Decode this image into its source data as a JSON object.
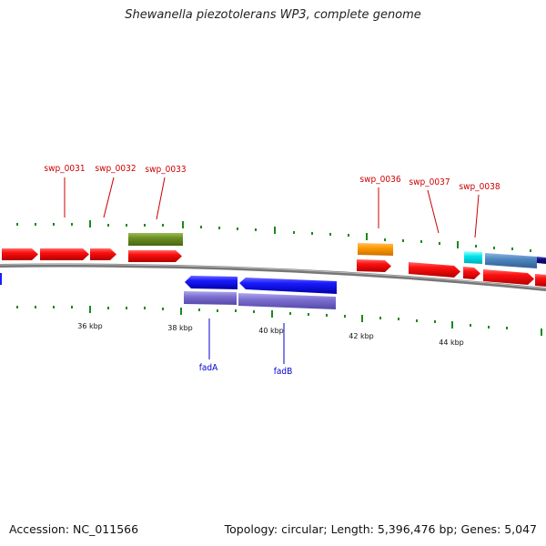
{
  "title": "Shewanella piezotolerans WP3, complete genome",
  "footer": {
    "accession": "Accession: NC_011566",
    "summary": "Topology: circular; Length: 5,396,476 bp; Genes: 5,047"
  },
  "colors": {
    "cds_red": "#ff1010",
    "cds_blue": "#1a1aff",
    "cds_purple": "#7b6fd0",
    "olive": "#6b8e23",
    "orange": "#ff9900",
    "cyan": "#00e5ee",
    "steelblue": "#4f86c0",
    "navy": "#0d0d80",
    "tick_green": "#1a8a1a",
    "backbone": "#777777",
    "label_red": "#cc0000",
    "label_blue": "#0000cc"
  },
  "kbp_ticks": [
    "36 kbp",
    "38 kbp",
    "40 kbp",
    "42 kbp",
    "44 kbp"
  ],
  "gene_labels": {
    "top": [
      "swp_0031",
      "swp_0032",
      "swp_0033",
      "swp_0036",
      "swp_0037",
      "swp_0038"
    ],
    "bottom": [
      "fadA",
      "fadB"
    ]
  }
}
